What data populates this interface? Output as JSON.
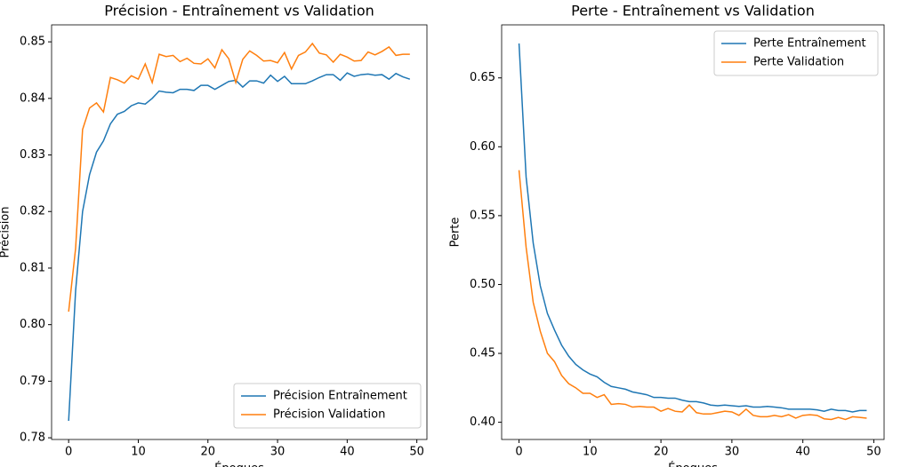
{
  "chart_data": [
    {
      "type": "line",
      "title": "Précision - Entraînement vs Validation",
      "x_label": "Époques",
      "y_label": "Précision",
      "x": [
        0,
        1,
        2,
        3,
        4,
        5,
        6,
        7,
        8,
        9,
        10,
        11,
        12,
        13,
        14,
        15,
        16,
        17,
        18,
        19,
        20,
        21,
        22,
        23,
        24,
        25,
        26,
        27,
        28,
        29,
        30,
        31,
        32,
        33,
        34,
        35,
        36,
        37,
        38,
        39,
        40,
        41,
        42,
        43,
        44,
        45,
        46,
        47,
        48,
        49
      ],
      "series": [
        {
          "name": "Précision Entraînement",
          "color": "#1f77b4",
          "values": [
            0.783,
            0.806,
            0.82,
            0.8265,
            0.8305,
            0.8325,
            0.8355,
            0.8372,
            0.8377,
            0.8387,
            0.8392,
            0.839,
            0.84,
            0.8413,
            0.8411,
            0.841,
            0.8416,
            0.8416,
            0.8414,
            0.8423,
            0.8423,
            0.8416,
            0.8423,
            0.843,
            0.8432,
            0.842,
            0.8431,
            0.8431,
            0.8427,
            0.8441,
            0.843,
            0.8439,
            0.8426,
            0.8426,
            0.8426,
            0.8431,
            0.8437,
            0.8442,
            0.8442,
            0.8432,
            0.8445,
            0.8439,
            0.8442,
            0.8443,
            0.8441,
            0.8442,
            0.8434,
            0.8444,
            0.8438,
            0.8434
          ]
        },
        {
          "name": "Précision Validation",
          "color": "#ff7f0e",
          "values": [
            0.8023,
            0.8135,
            0.8345,
            0.8383,
            0.8392,
            0.8376,
            0.8437,
            0.8433,
            0.8427,
            0.844,
            0.8434,
            0.8461,
            0.8428,
            0.8478,
            0.8474,
            0.8476,
            0.8465,
            0.8471,
            0.8462,
            0.8461,
            0.847,
            0.8454,
            0.8486,
            0.847,
            0.8428,
            0.8469,
            0.8484,
            0.8476,
            0.8466,
            0.8467,
            0.8463,
            0.8481,
            0.8452,
            0.8476,
            0.8482,
            0.8497,
            0.848,
            0.8477,
            0.8464,
            0.8478,
            0.8473,
            0.8466,
            0.8467,
            0.8482,
            0.8477,
            0.8483,
            0.8491,
            0.8476,
            0.8478,
            0.8478
          ]
        }
      ],
      "xlim": [
        -2.45,
        51.45
      ],
      "xticks": [
        0,
        10,
        20,
        30,
        40,
        50
      ],
      "ylim": [
        0.7797,
        0.853
      ],
      "yticks": [
        0.78,
        0.79,
        {
          "value": 0.8,
          "label": "0.80"
        },
        0.81,
        0.82,
        0.83,
        0.84,
        0.85
      ],
      "legend": "lower right"
    },
    {
      "type": "line",
      "title": "Perte - Entraînement vs Validation",
      "x_label": "Époques",
      "y_label": "Perte",
      "x": [
        0,
        1,
        2,
        3,
        4,
        5,
        6,
        7,
        8,
        9,
        10,
        11,
        12,
        13,
        14,
        15,
        16,
        17,
        18,
        19,
        20,
        21,
        22,
        23,
        24,
        25,
        26,
        27,
        28,
        29,
        30,
        31,
        32,
        33,
        34,
        35,
        36,
        37,
        38,
        39,
        40,
        41,
        42,
        43,
        44,
        45,
        46,
        47,
        48,
        49
      ],
      "series": [
        {
          "name": "Perte Entraînement",
          "color": "#1f77b4",
          "values": [
            0.675,
            0.578,
            0.53,
            0.499,
            0.479,
            0.467,
            0.456,
            0.448,
            0.442,
            0.438,
            0.435,
            0.433,
            0.429,
            0.426,
            0.425,
            0.424,
            0.422,
            0.421,
            0.42,
            0.418,
            0.418,
            0.4175,
            0.4175,
            0.416,
            0.415,
            0.415,
            0.414,
            0.4125,
            0.412,
            0.4125,
            0.412,
            0.4115,
            0.412,
            0.411,
            0.411,
            0.4115,
            0.411,
            0.4105,
            0.4095,
            0.4095,
            0.4095,
            0.4095,
            0.409,
            0.408,
            0.4095,
            0.4085,
            0.4085,
            0.4075,
            0.4085,
            0.4085
          ]
        },
        {
          "name": "Perte Validation",
          "color": "#ff7f0e",
          "values": [
            0.583,
            0.527,
            0.487,
            0.466,
            0.45,
            0.444,
            0.434,
            0.428,
            0.425,
            0.421,
            0.421,
            0.418,
            0.42,
            0.413,
            0.4135,
            0.413,
            0.411,
            0.4115,
            0.411,
            0.411,
            0.408,
            0.41,
            0.408,
            0.4075,
            0.4125,
            0.407,
            0.406,
            0.406,
            0.407,
            0.408,
            0.4075,
            0.405,
            0.4095,
            0.405,
            0.404,
            0.404,
            0.405,
            0.404,
            0.4055,
            0.403,
            0.405,
            0.4055,
            0.405,
            0.4025,
            0.402,
            0.4035,
            0.402,
            0.404,
            0.4035,
            0.403
          ]
        }
      ],
      "xlim": [
        -2.45,
        51.45
      ],
      "xticks": [
        0,
        10,
        20,
        30,
        40,
        50
      ],
      "ylim": [
        0.3875,
        0.6885
      ],
      "yticks": [
        {
          "value": 0.4,
          "label": "0.40"
        },
        0.45,
        {
          "value": 0.5,
          "label": "0.50"
        },
        0.55,
        {
          "value": 0.6,
          "label": "0.60"
        },
        0.65
      ],
      "legend": "upper right"
    }
  ]
}
